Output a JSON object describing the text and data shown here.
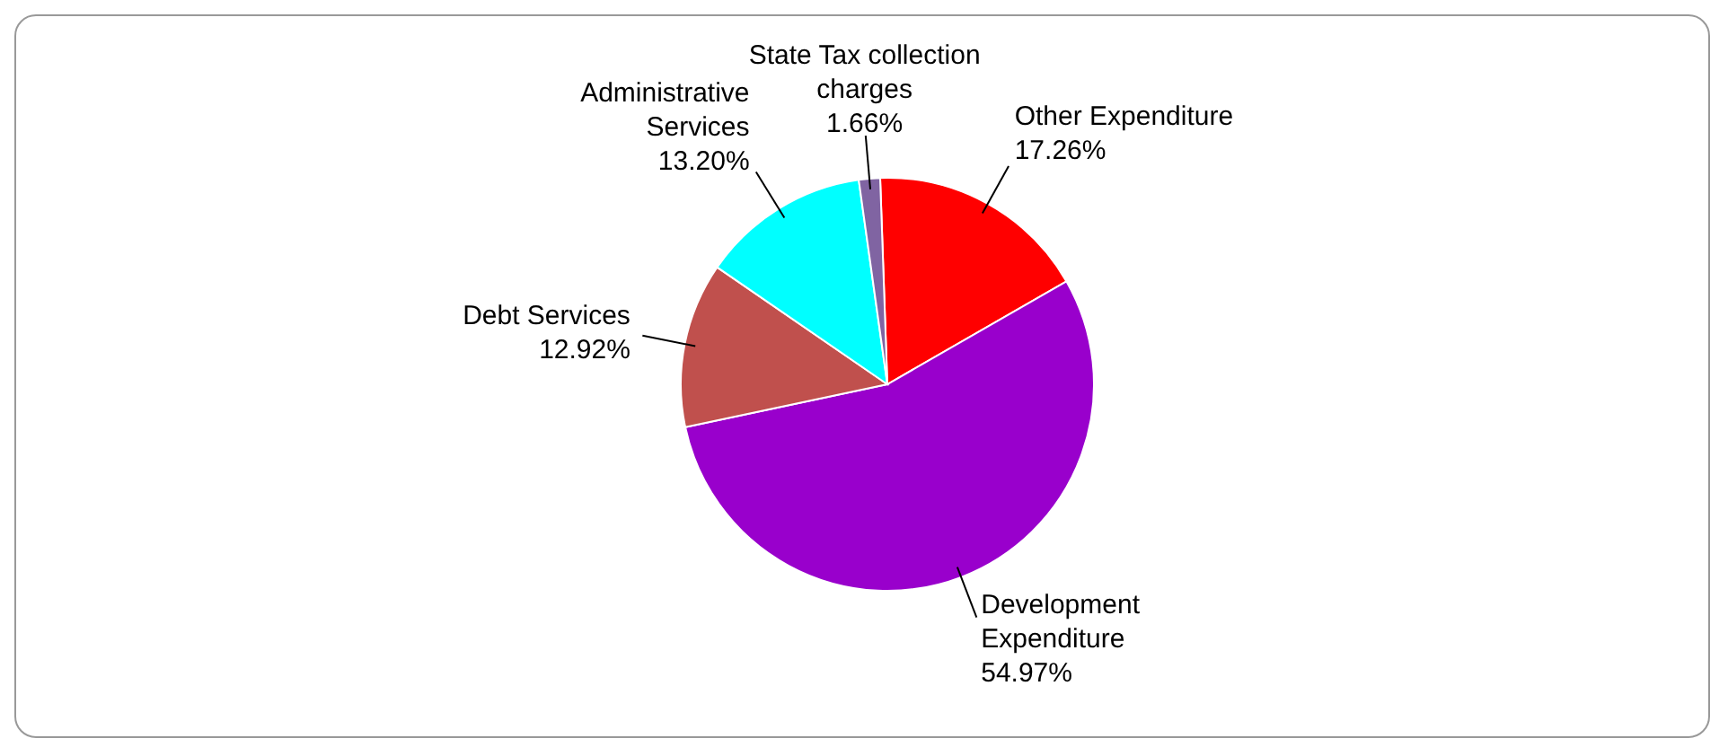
{
  "chart_data": {
    "type": "pie",
    "categories": [
      "Other Expenditure",
      "Development Expenditure",
      "Debt Services",
      "Administrative Services",
      "State Tax collection charges"
    ],
    "values": [
      17.26,
      54.97,
      12.92,
      13.2,
      1.66
    ],
    "colors": [
      "#ff0000",
      "#9900cc",
      "#c0504d",
      "#00ffff",
      "#8064a2"
    ],
    "value_labels": [
      "17.26%",
      "54.97%",
      "12.92%",
      "13.20%",
      "1.66%"
    ]
  }
}
